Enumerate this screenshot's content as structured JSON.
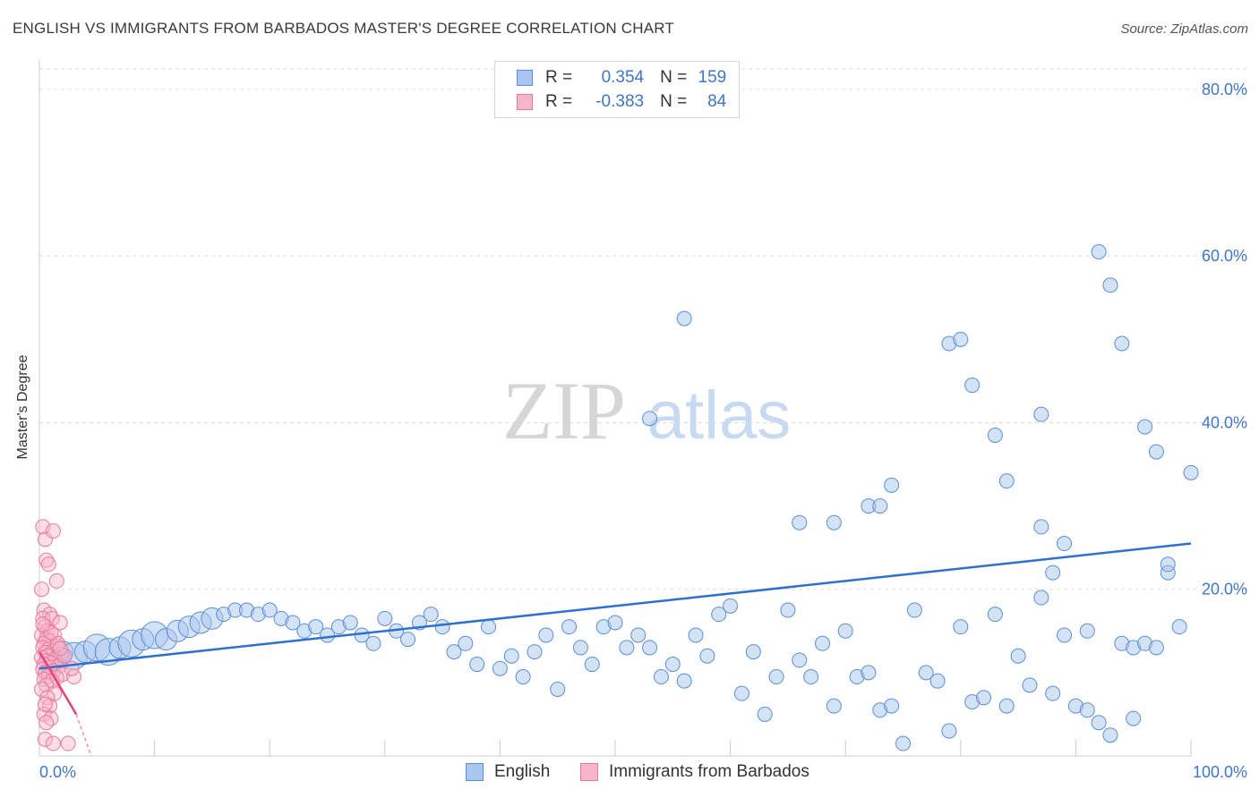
{
  "title": "ENGLISH VS IMMIGRANTS FROM BARBADOS MASTER'S DEGREE CORRELATION CHART",
  "source": "Source: ZipAtlas.com",
  "watermark": {
    "zip": "ZIP",
    "atlas": "atlas"
  },
  "legend": {
    "rows": [
      {
        "r_label": "R =",
        "r_value": "0.354",
        "n_label": "N =",
        "n_value": "159"
      },
      {
        "r_label": "R =",
        "r_value": "-0.383",
        "n_label": "N =",
        "n_value": "84"
      }
    ]
  },
  "bottom_legend": {
    "english": "English",
    "barbados": "Immigrants from Barbados"
  },
  "colors": {
    "blue_fill": "#a9c6ee",
    "blue_stroke": "#5b8fd6",
    "blue_line": "#2f6fcf",
    "pink_fill": "#f6b6c8",
    "pink_stroke": "#e9789d",
    "pink_line": "#e0457a",
    "axis_text": "#3f76c7",
    "grid": "#dcdcdc"
  },
  "chart_data": {
    "type": "scatter",
    "title": "ENGLISH VS IMMIGRANTS FROM BARBADOS MASTER'S DEGREE CORRELATION CHART",
    "xlabel": "",
    "ylabel": "Master's Degree",
    "xlim": [
      0,
      100
    ],
    "ylim": [
      0,
      83
    ],
    "x_tick_labels": [
      "0.0%",
      "100.0%"
    ],
    "y_ticks": [
      20,
      40,
      60,
      80
    ],
    "y_tick_labels": [
      "20.0%",
      "40.0%",
      "60.0%",
      "80.0%"
    ],
    "series": [
      {
        "name": "English",
        "R": 0.354,
        "N": 159,
        "trend": {
          "x": [
            0,
            100
          ],
          "y": [
            10.5,
            25.5
          ]
        },
        "points": [
          [
            1,
            11.5,
            2
          ],
          [
            1.5,
            12,
            3
          ],
          [
            2,
            12.5,
            2
          ],
          [
            3,
            12,
            3
          ],
          [
            4,
            12.5,
            2
          ],
          [
            5,
            13,
            3
          ],
          [
            6,
            12.5,
            3
          ],
          [
            7,
            13,
            2
          ],
          [
            8,
            13.5,
            3
          ],
          [
            9,
            14,
            2
          ],
          [
            10,
            14.5,
            3
          ],
          [
            11,
            14,
            2
          ],
          [
            12,
            15,
            2
          ],
          [
            13,
            15.5,
            2
          ],
          [
            14,
            16,
            2
          ],
          [
            15,
            16.5,
            2
          ],
          [
            16,
            17,
            1
          ],
          [
            17,
            17.5,
            1
          ],
          [
            18,
            17.5,
            1
          ],
          [
            19,
            17,
            1
          ],
          [
            20,
            17.5,
            1
          ],
          [
            21,
            16.5,
            1
          ],
          [
            22,
            16,
            1
          ],
          [
            23,
            15,
            1
          ],
          [
            24,
            15.5,
            1
          ],
          [
            25,
            14.5,
            1
          ],
          [
            26,
            15.5,
            1
          ],
          [
            27,
            16,
            1
          ],
          [
            28,
            14.5,
            1
          ],
          [
            29,
            13.5,
            1
          ],
          [
            30,
            16.5,
            1
          ],
          [
            31,
            15,
            1
          ],
          [
            32,
            14,
            1
          ],
          [
            33,
            16,
            1
          ],
          [
            34,
            17,
            1
          ],
          [
            35,
            15.5,
            1
          ],
          [
            36,
            12.5,
            1
          ],
          [
            37,
            13.5,
            1
          ],
          [
            38,
            11,
            1
          ],
          [
            39,
            15.5,
            1
          ],
          [
            40,
            10.5,
            1
          ],
          [
            41,
            12,
            1
          ],
          [
            42,
            9.5,
            1
          ],
          [
            43,
            12.5,
            1
          ],
          [
            44,
            14.5,
            1
          ],
          [
            45,
            8,
            1
          ],
          [
            46,
            15.5,
            1
          ],
          [
            47,
            13,
            1
          ],
          [
            48,
            11,
            1
          ],
          [
            49,
            15.5,
            1
          ],
          [
            50,
            16,
            1
          ],
          [
            51,
            13,
            1
          ],
          [
            52,
            14.5,
            1
          ],
          [
            53,
            13,
            1
          ],
          [
            54,
            9.5,
            1
          ],
          [
            55,
            11,
            1
          ],
          [
            56,
            9,
            1
          ],
          [
            57,
            14.5,
            1
          ],
          [
            58,
            12,
            1
          ],
          [
            59,
            17,
            1
          ],
          [
            60,
            18,
            1
          ],
          [
            61,
            7.5,
            1
          ],
          [
            62,
            12.5,
            1
          ],
          [
            63,
            5,
            1
          ],
          [
            64,
            9.5,
            1
          ],
          [
            65,
            17.5,
            1
          ],
          [
            66,
            11.5,
            1
          ],
          [
            67,
            9.5,
            1
          ],
          [
            68,
            13.5,
            1
          ],
          [
            69,
            6,
            1
          ],
          [
            70,
            15,
            1
          ],
          [
            71,
            9.5,
            1
          ],
          [
            72,
            10,
            1
          ],
          [
            73,
            5.5,
            1
          ],
          [
            74,
            6,
            1
          ],
          [
            75,
            1.5,
            1
          ],
          [
            76,
            17.5,
            1
          ],
          [
            77,
            10,
            1
          ],
          [
            78,
            9,
            1
          ],
          [
            79,
            3,
            1
          ],
          [
            80,
            15.5,
            1
          ],
          [
            81,
            6.5,
            1
          ],
          [
            82,
            7,
            1
          ],
          [
            83,
            17,
            1
          ],
          [
            84,
            6,
            1
          ],
          [
            85,
            12,
            1
          ],
          [
            86,
            8.5,
            1
          ],
          [
            87,
            19,
            1
          ],
          [
            88,
            7.5,
            1
          ],
          [
            89,
            14.5,
            1
          ],
          [
            90,
            6,
            1
          ],
          [
            91,
            15,
            1
          ],
          [
            92,
            4,
            1
          ],
          [
            93,
            2.5,
            1
          ],
          [
            94,
            13.5,
            1
          ],
          [
            95,
            13,
            1
          ],
          [
            96,
            13.5,
            1
          ],
          [
            97,
            13,
            1
          ],
          [
            98,
            22,
            1
          ],
          [
            99,
            15.5,
            1
          ],
          [
            53,
            40.5,
            1
          ],
          [
            56,
            52.5,
            1
          ],
          [
            66,
            28,
            1
          ],
          [
            69,
            28,
            1
          ],
          [
            72,
            30,
            1
          ],
          [
            73,
            30,
            1
          ],
          [
            74,
            32.5,
            1
          ],
          [
            79,
            49.5,
            1
          ],
          [
            80,
            50,
            1
          ],
          [
            81,
            44.5,
            1
          ],
          [
            83,
            38.5,
            1
          ],
          [
            84,
            33,
            1
          ],
          [
            87,
            41,
            1
          ],
          [
            87,
            27.5,
            1
          ],
          [
            88,
            22,
            1
          ],
          [
            89,
            25.5,
            1
          ],
          [
            92,
            60.5,
            1
          ],
          [
            93,
            56.5,
            1
          ],
          [
            94,
            49.5,
            1
          ],
          [
            96,
            39.5,
            1
          ],
          [
            97,
            36.5,
            1
          ],
          [
            98,
            23,
            1
          ],
          [
            100,
            34,
            1
          ],
          [
            95,
            4.5,
            1
          ],
          [
            91,
            5.5,
            1
          ]
        ]
      },
      {
        "name": "Immigrants from Barbados",
        "R": -0.383,
        "N": 84,
        "trend": {
          "x": [
            0,
            3.2
          ],
          "y": [
            12.5,
            5.0
          ]
        },
        "trend_dashed": {
          "x": [
            3.2,
            4.5
          ],
          "y": [
            5.0,
            0
          ]
        },
        "points": [
          [
            0.3,
            27.5
          ],
          [
            0.5,
            26
          ],
          [
            1.2,
            27
          ],
          [
            0.6,
            23.5
          ],
          [
            0.8,
            23
          ],
          [
            1.5,
            21
          ],
          [
            0.2,
            20
          ],
          [
            0.4,
            17.5
          ],
          [
            0.9,
            17
          ],
          [
            0.3,
            16.5
          ],
          [
            1.1,
            16.5
          ],
          [
            1.8,
            16
          ],
          [
            0.5,
            15.5
          ],
          [
            0.7,
            15
          ],
          [
            0.2,
            14.5
          ],
          [
            1.3,
            14.5
          ],
          [
            0.6,
            14
          ],
          [
            0.9,
            13.8
          ],
          [
            0.4,
            13.5
          ],
          [
            1.6,
            13.2
          ],
          [
            0.3,
            13
          ],
          [
            0.8,
            12.8
          ],
          [
            1.2,
            12.6
          ],
          [
            0.5,
            12.4
          ],
          [
            1.9,
            12.2
          ],
          [
            0.7,
            12
          ],
          [
            0.2,
            11.8
          ],
          [
            1.4,
            11.6
          ],
          [
            0.6,
            11.4
          ],
          [
            1.0,
            11.2
          ],
          [
            0.4,
            11
          ],
          [
            1.7,
            10.8
          ],
          [
            0.9,
            10.6
          ],
          [
            0.3,
            10.4
          ],
          [
            1.2,
            10.2
          ],
          [
            0.5,
            10
          ],
          [
            2.0,
            9.8
          ],
          [
            0.8,
            9.6
          ],
          [
            1.5,
            9.4
          ],
          [
            0.4,
            9.2
          ],
          [
            1.1,
            9
          ],
          [
            0.6,
            8.5
          ],
          [
            0.2,
            8
          ],
          [
            1.3,
            7.5
          ],
          [
            0.7,
            7
          ],
          [
            0.9,
            6
          ],
          [
            0.4,
            5
          ],
          [
            1.0,
            4.5
          ],
          [
            0.6,
            4
          ],
          [
            0.5,
            2
          ],
          [
            1.2,
            1.5
          ],
          [
            2.5,
            1.5
          ],
          [
            3,
            9.5
          ],
          [
            2.2,
            12
          ],
          [
            2.8,
            10.5
          ],
          [
            1.6,
            13.5
          ],
          [
            1.0,
            14.8
          ],
          [
            0.3,
            15.8
          ],
          [
            1.8,
            12.9
          ],
          [
            0.5,
            6.2
          ]
        ]
      }
    ]
  }
}
